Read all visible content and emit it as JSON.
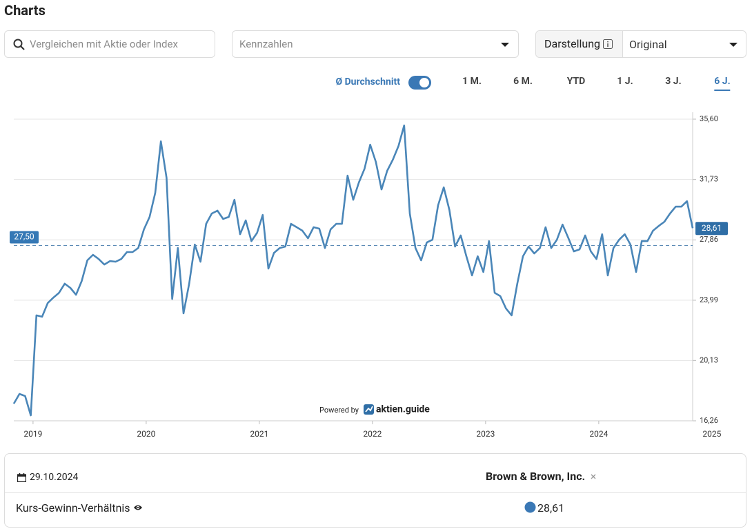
{
  "header": {
    "title": "Charts"
  },
  "controls": {
    "search_placeholder": "Vergleichen mit Aktie oder Index",
    "metric_placeholder": "Kennzahlen",
    "display_label": "Darstellung",
    "display_value": "Original",
    "average_toggle": "Ø Durchschnitt",
    "periods": [
      "1 M.",
      "6 M.",
      "YTD",
      "1 J.",
      "3 J.",
      "6 J."
    ],
    "active_period": 5
  },
  "chart_data": {
    "type": "line",
    "x": [
      2018.83,
      2018.88,
      2018.93,
      2018.98,
      2019.03,
      2019.08,
      2019.13,
      2019.18,
      2019.23,
      2019.28,
      2019.33,
      2019.38,
      2019.43,
      2019.48,
      2019.53,
      2019.58,
      2019.63,
      2019.68,
      2019.73,
      2019.78,
      2019.83,
      2019.88,
      2019.93,
      2019.98,
      2020.03,
      2020.08,
      2020.13,
      2020.18,
      2020.23,
      2020.28,
      2020.33,
      2020.38,
      2020.43,
      2020.48,
      2020.53,
      2020.58,
      2020.63,
      2020.68,
      2020.73,
      2020.78,
      2020.83,
      2020.88,
      2020.93,
      2020.98,
      2021.03,
      2021.08,
      2021.13,
      2021.18,
      2021.23,
      2021.28,
      2021.33,
      2021.38,
      2021.43,
      2021.48,
      2021.53,
      2021.58,
      2021.63,
      2021.68,
      2021.73,
      2021.78,
      2021.83,
      2021.88,
      2021.93,
      2021.98,
      2022.03,
      2022.08,
      2022.13,
      2022.18,
      2022.23,
      2022.28,
      2022.33,
      2022.38,
      2022.43,
      2022.48,
      2022.53,
      2022.58,
      2022.63,
      2022.68,
      2022.73,
      2022.78,
      2022.83,
      2022.88,
      2022.93,
      2022.98,
      2023.03,
      2023.08,
      2023.13,
      2023.18,
      2023.23,
      2023.28,
      2023.33,
      2023.38,
      2023.43,
      2023.48,
      2023.53,
      2023.58,
      2023.63,
      2023.68,
      2023.73,
      2023.78,
      2023.83,
      2023.88,
      2023.93,
      2023.98,
      2024.03,
      2024.08,
      2024.13,
      2024.18,
      2024.23,
      2024.28,
      2024.33,
      2024.38,
      2024.43,
      2024.48,
      2024.53,
      2024.58,
      2024.63,
      2024.68,
      2024.73,
      2024.78,
      2024.83
    ],
    "series": [
      {
        "color": "#4a86b8",
        "values": [
          17.36,
          17.98,
          17.85,
          16.61,
          23.02,
          22.93,
          23.81,
          24.16,
          24.47,
          25.05,
          24.78,
          24.34,
          25.22,
          26.55,
          26.9,
          26.63,
          26.28,
          26.5,
          26.46,
          26.63,
          27.08,
          27.08,
          27.34,
          28.53,
          29.33,
          30.87,
          34.18,
          31.84,
          24.07,
          27.34,
          23.15,
          25.05,
          27.56,
          26.46,
          28.89,
          29.55,
          29.73,
          29.2,
          29.33,
          30.43,
          28.22,
          29.11,
          27.78,
          28.31,
          29.46,
          26.02,
          27.03,
          27.34,
          27.43,
          28.89,
          28.67,
          28.45,
          27.96,
          28.67,
          28.58,
          27.34,
          28.53,
          28.89,
          28.89,
          31.98,
          30.43,
          31.54,
          32.42,
          33.96,
          32.86,
          31.09,
          32.29,
          33.0,
          33.88,
          35.2,
          29.55,
          27.34,
          26.55,
          27.69,
          27.87,
          30.08,
          31.23,
          29.77,
          27.43,
          28.14,
          26.81,
          25.58,
          26.81,
          25.8,
          27.78,
          24.47,
          24.25,
          23.46,
          23.02,
          25.05,
          26.81,
          27.43,
          26.99,
          27.34,
          28.67,
          27.34,
          27.87,
          28.84,
          28.0,
          27.12,
          27.25,
          28.14,
          27.12,
          26.63,
          28.22,
          25.58,
          27.34,
          27.87,
          28.22,
          27.56,
          25.8,
          27.78,
          27.78,
          28.45,
          28.75,
          29.02,
          29.55,
          29.99,
          29.99,
          30.34,
          28.61
        ]
      }
    ],
    "xlim": [
      2018.83,
      2024.83
    ],
    "xticks": [
      2019,
      2020,
      2021,
      2022,
      2023,
      2024,
      2025
    ],
    "ylim": [
      16.26,
      35.6
    ],
    "yticks": [
      {
        "value": 16.26,
        "label": "16,26"
      },
      {
        "value": 20.13,
        "label": "20,13"
      },
      {
        "value": 23.99,
        "label": "23,99"
      },
      {
        "value": 27.86,
        "label": "27,86"
      },
      {
        "value": 31.73,
        "label": "31,73"
      },
      {
        "value": 35.6,
        "label": "35,60"
      }
    ],
    "grid": true,
    "average": {
      "value": 27.5,
      "label": "27,50"
    },
    "current": {
      "value": 28.61,
      "label": "28,61"
    }
  },
  "branding": {
    "prefix": "Powered by",
    "name": "aktien.guide"
  },
  "footer": {
    "date": "29.10.2024",
    "company": "Brown & Brown, Inc.",
    "metric": "Kurs-Gewinn-Verhältnis",
    "value": "28,61"
  }
}
